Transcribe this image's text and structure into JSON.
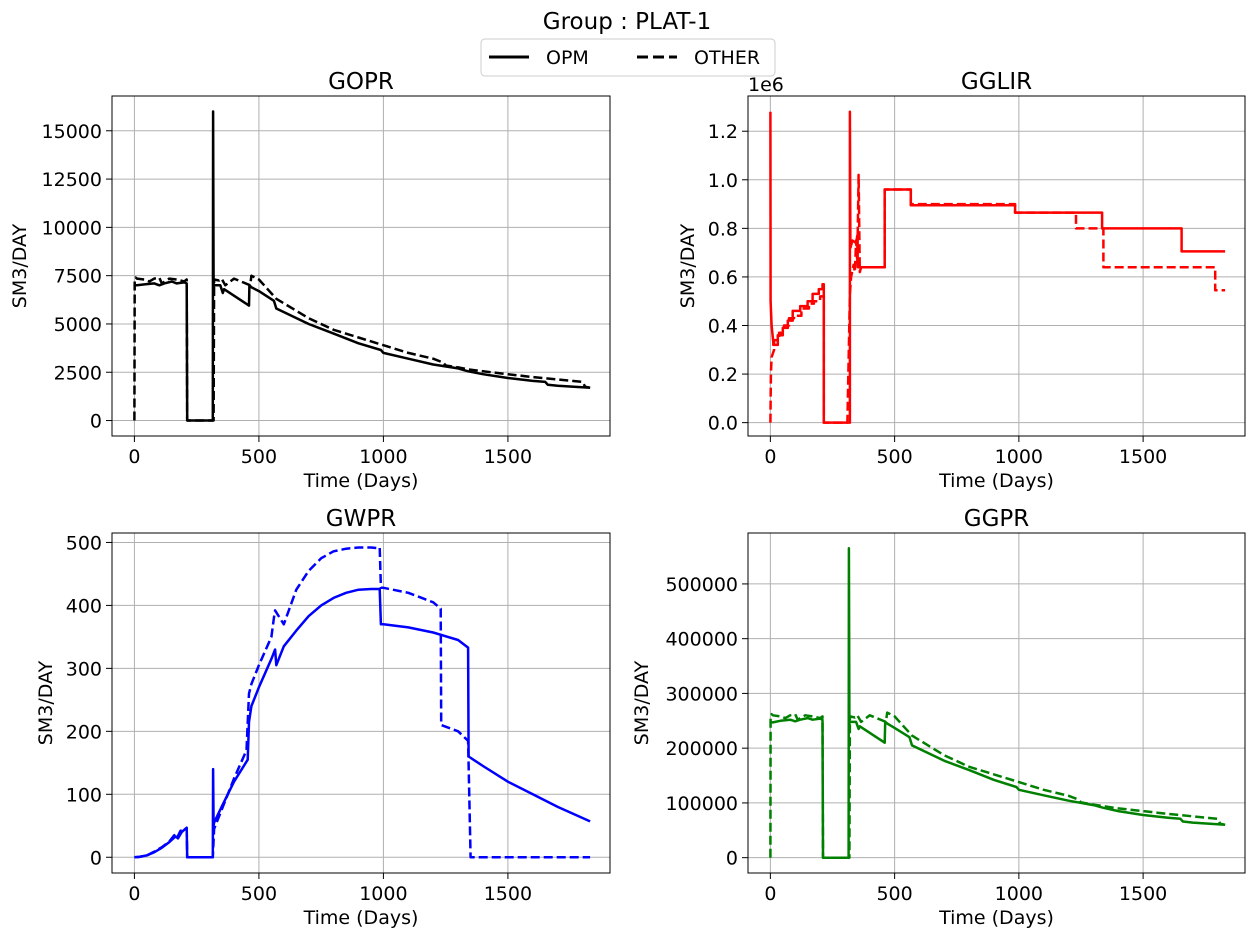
{
  "figure": {
    "title": "Group : PLAT-1"
  },
  "legend": {
    "placement": "top-center",
    "entries": [
      {
        "label": "OPM",
        "style": "solid"
      },
      {
        "label": "OTHER",
        "style": "dashed"
      }
    ]
  },
  "chart_data": [
    {
      "type": "line",
      "title": "GOPR",
      "xlabel": "Time (Days)",
      "ylabel": "SM3/DAY",
      "xlim": [
        -90,
        1910
      ],
      "ylim": [
        -800,
        16800
      ],
      "xticks": [
        0,
        500,
        1000,
        1500
      ],
      "xtick_labels": [
        "0",
        "500",
        "1000",
        "1500"
      ],
      "yticks": [
        0,
        2500,
        5000,
        7500,
        10000,
        12500,
        15000
      ],
      "ytick_labels": [
        "0",
        "2500",
        "5000",
        "7500",
        "10000",
        "12500",
        "15000"
      ],
      "offset_text": "",
      "grid": true,
      "color": "#000000",
      "series": [
        {
          "name": "OPM",
          "x": [
            0,
            2,
            10,
            40,
            80,
            100,
            120,
            150,
            170,
            200,
            210,
            212,
            250,
            300,
            315,
            316,
            318,
            320,
            322,
            345,
            355,
            360,
            460,
            462,
            470,
            500,
            560,
            570,
            700,
            800,
            900,
            990,
            1000,
            1100,
            1200,
            1300,
            1340,
            1400,
            1500,
            1600,
            1650,
            1660,
            1700,
            1830
          ],
          "y": [
            6950,
            7000,
            7000,
            7050,
            7100,
            7000,
            7100,
            7200,
            7100,
            7150,
            7100,
            0,
            0,
            0,
            0,
            16000,
            6900,
            7000,
            7000,
            7000,
            6600,
            6800,
            5950,
            7000,
            6900,
            6700,
            6200,
            5800,
            5000,
            4500,
            4000,
            3650,
            3500,
            3200,
            2900,
            2700,
            2550,
            2400,
            2200,
            2050,
            2000,
            1850,
            1800,
            1700
          ]
        },
        {
          "name": "OTHER",
          "x": [
            0,
            1,
            5,
            10,
            40,
            60,
            80,
            100,
            110,
            140,
            170,
            200,
            210,
            212,
            250,
            300,
            318,
            320,
            340,
            350,
            365,
            400,
            465,
            470,
            500,
            570,
            700,
            800,
            900,
            1000,
            1100,
            1200,
            1240,
            1250,
            1300,
            1340,
            1400,
            1500,
            1600,
            1800,
            1810,
            1830
          ],
          "y": [
            0,
            7300,
            7400,
            7350,
            7300,
            7200,
            7350,
            7400,
            7100,
            7350,
            7300,
            7200,
            7300,
            0,
            0,
            0,
            0,
            7300,
            7250,
            7350,
            7000,
            7350,
            7000,
            7500,
            7300,
            6300,
            5300,
            4700,
            4300,
            3900,
            3500,
            3200,
            3000,
            2850,
            2750,
            2650,
            2550,
            2400,
            2250,
            2000,
            1750,
            1700
          ]
        }
      ]
    },
    {
      "type": "line",
      "title": "GGLIR",
      "xlabel": "Time (Days)",
      "ylabel": "SM3/DAY",
      "xlim": [
        -90,
        1910
      ],
      "ylim": [
        -0.055,
        1.345
      ],
      "xticks": [
        0,
        500,
        1000,
        1500
      ],
      "xtick_labels": [
        "0",
        "500",
        "1000",
        "1500"
      ],
      "yticks": [
        0,
        0.2,
        0.4,
        0.6,
        0.8,
        1.0,
        1.2
      ],
      "ytick_labels": [
        "0.0",
        "0.2",
        "0.4",
        "0.6",
        "0.8",
        "1.0",
        "1.2"
      ],
      "offset_text": "1e6",
      "grid": true,
      "color": "#ff0000",
      "series": [
        {
          "name": "OPM",
          "x": [
            0,
            1,
            5,
            12,
            12,
            30,
            30,
            50,
            50,
            70,
            70,
            90,
            90,
            120,
            120,
            150,
            150,
            170,
            170,
            195,
            195,
            210,
            210,
            215,
            215,
            320,
            320,
            322,
            330,
            345,
            350,
            352,
            360,
            360,
            460,
            460,
            565,
            565,
            985,
            985,
            1335,
            1335,
            1655,
            1655,
            1830
          ],
          "y": [
            1.28,
            0.5,
            0.4,
            0.33,
            0.32,
            0.32,
            0.36,
            0.36,
            0.39,
            0.39,
            0.42,
            0.42,
            0.46,
            0.46,
            0.48,
            0.48,
            0.5,
            0.5,
            0.53,
            0.53,
            0.55,
            0.55,
            0.57,
            0.57,
            0.0,
            0.0,
            1.28,
            0.72,
            0.75,
            0.74,
            0.77,
            0.64,
            0.64,
            0.64,
            0.64,
            0.96,
            0.96,
            0.895,
            0.895,
            0.865,
            0.865,
            0.8,
            0.8,
            0.705,
            0.705
          ]
        },
        {
          "name": "OTHER",
          "x": [
            0,
            2,
            5,
            15,
            15,
            35,
            35,
            55,
            55,
            75,
            75,
            95,
            95,
            125,
            125,
            155,
            155,
            175,
            175,
            200,
            200,
            215,
            215,
            310,
            320,
            325,
            335,
            340,
            345,
            350,
            355,
            360,
            365,
            460,
            460,
            565,
            565,
            985,
            985,
            1230,
            1230,
            1340,
            1340,
            1790,
            1790,
            1830
          ],
          "y": [
            0,
            0.2,
            0.27,
            0.3,
            0.34,
            0.34,
            0.37,
            0.37,
            0.4,
            0.4,
            0.43,
            0.43,
            0.44,
            0.44,
            0.47,
            0.47,
            0.49,
            0.49,
            0.5,
            0.5,
            0.52,
            0.52,
            0.0,
            0.0,
            0.53,
            0.6,
            0.65,
            0.62,
            0.75,
            0.66,
            1.02,
            0.62,
            0.64,
            0.64,
            0.96,
            0.96,
            0.9,
            0.9,
            0.865,
            0.865,
            0.8,
            0.8,
            0.64,
            0.64,
            0.545,
            0.545
          ]
        }
      ]
    },
    {
      "type": "line",
      "title": "GWPR",
      "xlabel": "Time (Days)",
      "ylabel": "SM3/DAY",
      "xlim": [
        -90,
        1910
      ],
      "ylim": [
        -25,
        515
      ],
      "xticks": [
        0,
        500,
        1000,
        1500
      ],
      "xtick_labels": [
        "0",
        "500",
        "1000",
        "1500"
      ],
      "yticks": [
        0,
        100,
        200,
        300,
        400,
        500
      ],
      "ytick_labels": [
        "0",
        "100",
        "200",
        "300",
        "400",
        "500"
      ],
      "offset_text": "",
      "grid": true,
      "color": "#0000ff",
      "series": [
        {
          "name": "OPM",
          "x": [
            0,
            20,
            50,
            80,
            110,
            140,
            165,
            175,
            190,
            210,
            212,
            250,
            315,
            316,
            318,
            320,
            350,
            400,
            455,
            460,
            470,
            500,
            550,
            565,
            570,
            600,
            650,
            700,
            750,
            800,
            850,
            900,
            950,
            985,
            990,
            1000,
            1100,
            1200,
            1300,
            1340,
            1342,
            1400,
            1500,
            1600,
            1700,
            1830
          ],
          "y": [
            0,
            0.5,
            3,
            8,
            15,
            24,
            33,
            30,
            40,
            47,
            0,
            0,
            0,
            140,
            50,
            55,
            80,
            120,
            155,
            215,
            240,
            270,
            315,
            330,
            305,
            335,
            360,
            383,
            400,
            412,
            420,
            425,
            426,
            426,
            370,
            370,
            365,
            357,
            345,
            333,
            160,
            145,
            120,
            100,
            80,
            57
          ]
        },
        {
          "name": "OTHER",
          "x": [
            0,
            20,
            50,
            80,
            110,
            140,
            160,
            170,
            185,
            205,
            210,
            212,
            250,
            315,
            320,
            350,
            400,
            450,
            460,
            470,
            500,
            550,
            560,
            565,
            600,
            650,
            700,
            750,
            800,
            850,
            900,
            950,
            975,
            985,
            990,
            1000,
            1100,
            1200,
            1230,
            1232,
            1300,
            1340,
            1350,
            1400,
            1600,
            1830
          ],
          "y": [
            0,
            0.5,
            3,
            9,
            16,
            25,
            35,
            30,
            42,
            45,
            45,
            0,
            0,
            0,
            45,
            75,
            125,
            170,
            260,
            275,
            305,
            350,
            380,
            392,
            370,
            425,
            455,
            475,
            486,
            490,
            492,
            492,
            491,
            492,
            428,
            428,
            420,
            405,
            395,
            210,
            200,
            185,
            0,
            0,
            0,
            0
          ]
        }
      ]
    },
    {
      "type": "line",
      "title": "GGPR",
      "xlabel": "Time (Days)",
      "ylabel": "SM3/DAY",
      "xlim": [
        -90,
        1910
      ],
      "ylim": [
        -28000,
        593000
      ],
      "xticks": [
        0,
        500,
        1000,
        1500
      ],
      "xtick_labels": [
        "0",
        "500",
        "1000",
        "1500"
      ],
      "yticks": [
        0,
        100000,
        200000,
        300000,
        400000,
        500000
      ],
      "ytick_labels": [
        "0",
        "100000",
        "200000",
        "300000",
        "400000",
        "500000"
      ],
      "offset_text": "",
      "grid": true,
      "color": "#008000",
      "series": [
        {
          "name": "OPM",
          "x": [
            0,
            2,
            10,
            40,
            80,
            100,
            120,
            150,
            170,
            200,
            210,
            212,
            250,
            300,
            315,
            316,
            318,
            320,
            322,
            345,
            355,
            360,
            460,
            462,
            470,
            500,
            560,
            570,
            700,
            800,
            900,
            990,
            1000,
            1100,
            1200,
            1300,
            1340,
            1400,
            1500,
            1600,
            1650,
            1660,
            1700,
            1830
          ],
          "y": [
            245000,
            247000,
            247000,
            250000,
            252000,
            249000,
            252000,
            255000,
            252000,
            254000,
            252000,
            0,
            0,
            0,
            0,
            565000,
            245000,
            248000,
            248000,
            248000,
            235000,
            240000,
            210000,
            248000,
            245000,
            237000,
            220000,
            205000,
            177000,
            160000,
            142000,
            129000,
            124000,
            114000,
            104000,
            96000,
            91000,
            85000,
            78000,
            73000,
            71000,
            66000,
            64000,
            60000
          ]
        },
        {
          "name": "OTHER",
          "x": [
            0,
            1,
            5,
            10,
            40,
            60,
            80,
            100,
            110,
            140,
            170,
            200,
            210,
            212,
            250,
            300,
            318,
            320,
            340,
            350,
            365,
            400,
            465,
            470,
            500,
            570,
            700,
            800,
            900,
            1000,
            1100,
            1200,
            1240,
            1250,
            1300,
            1340,
            1400,
            1500,
            1600,
            1800,
            1810,
            1830
          ],
          "y": [
            0,
            258000,
            262000,
            260000,
            258000,
            255000,
            260000,
            262000,
            252000,
            260000,
            258000,
            255000,
            258000,
            0,
            0,
            0,
            0,
            258000,
            256000,
            260000,
            248000,
            260000,
            248000,
            265000,
            258000,
            223000,
            187000,
            166000,
            152000,
            138000,
            124000,
            113000,
            106000,
            101000,
            97000,
            94000,
            90000,
            85000,
            80000,
            71000,
            62000,
            60000
          ]
        }
      ]
    }
  ]
}
